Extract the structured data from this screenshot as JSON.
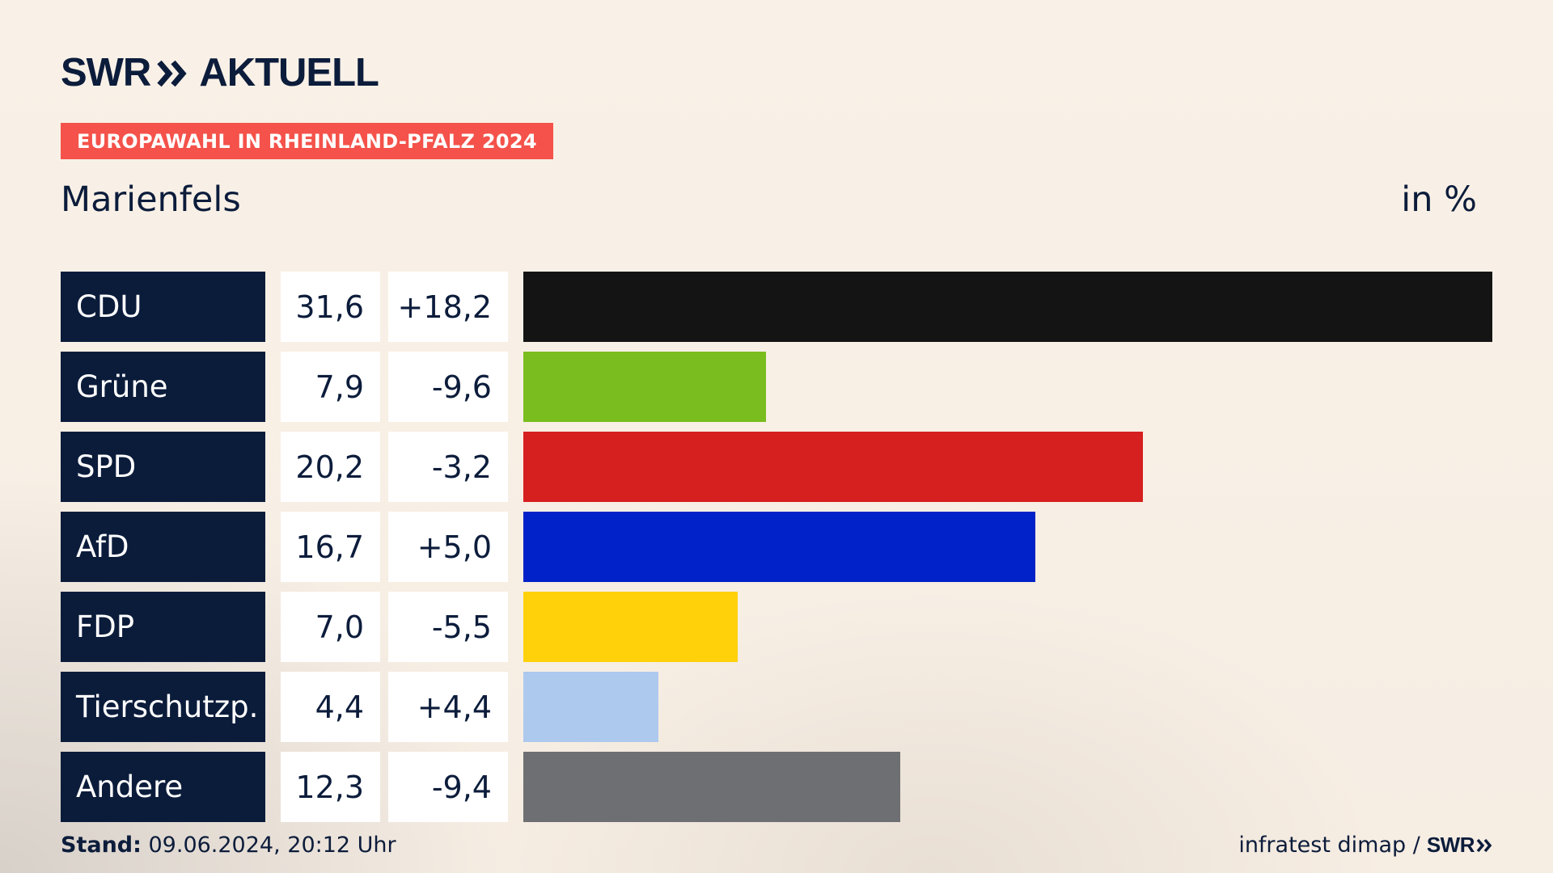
{
  "brand": {
    "name": "SWR",
    "product": "AKTUELL"
  },
  "badge": "EUROPAWAHL IN RHEINLAND-PFALZ 2024",
  "region": "Marienfels",
  "unit": "in %",
  "footer": {
    "stand_label": "Stand:",
    "stand_value": " 09.06.2024, 20:12 Uhr",
    "source": "infratest dimap /",
    "source_logo": "SWR"
  },
  "colors": {
    "navy": "#0b1c3b",
    "badge": "#f4524a",
    "CDU": "#141414",
    "Grüne": "#79bd1f",
    "SPD": "#d61f1f",
    "AfD": "#0022c8",
    "FDP": "#ffd10a",
    "Tierschutzp.": "#adc9ee",
    "Andere": "#6e6f72"
  },
  "chart_data": {
    "type": "bar",
    "orientation": "horizontal",
    "categories": [
      "CDU",
      "Grüne",
      "SPD",
      "AfD",
      "FDP",
      "Tierschutzp.",
      "Andere"
    ],
    "values": [
      31.6,
      7.9,
      20.2,
      16.7,
      7.0,
      4.4,
      12.3
    ],
    "value_labels": [
      "31,6",
      "7,9",
      "20,2",
      "16,7",
      "7,0",
      "4,4",
      "12,3"
    ],
    "diff_labels": [
      "+18,2",
      "-9,6",
      "-3,2",
      "+5,0",
      "-5,5",
      "+4,4",
      "-9,4"
    ],
    "xlim": [
      0,
      31.6
    ]
  }
}
